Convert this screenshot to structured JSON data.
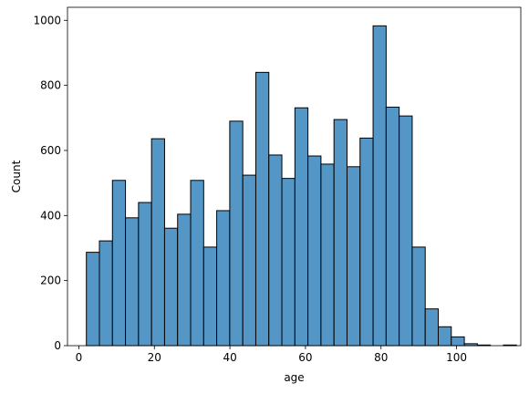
{
  "chart_data": {
    "type": "bar",
    "subtype": "histogram",
    "title": "",
    "xlabel": "age",
    "ylabel": "Count",
    "xlim": [
      -3,
      117
    ],
    "ylim": [
      0,
      1040
    ],
    "xticks": [
      0,
      20,
      40,
      60,
      80,
      100
    ],
    "yticks": [
      0,
      200,
      400,
      600,
      800,
      1000
    ],
    "grid": false,
    "legend": "none",
    "bar_color": "#5497c7",
    "edge_color": "#000000",
    "bins": [
      {
        "x0": 2,
        "x1": 5.45,
        "value": 287
      },
      {
        "x0": 5.45,
        "x1": 8.9,
        "value": 322
      },
      {
        "x0": 8.9,
        "x1": 12.35,
        "value": 508
      },
      {
        "x0": 12.35,
        "x1": 15.8,
        "value": 393
      },
      {
        "x0": 15.8,
        "x1": 19.25,
        "value": 440
      },
      {
        "x0": 19.25,
        "x1": 22.7,
        "value": 636
      },
      {
        "x0": 22.7,
        "x1": 26.15,
        "value": 361
      },
      {
        "x0": 26.15,
        "x1": 29.6,
        "value": 404
      },
      {
        "x0": 29.6,
        "x1": 33.05,
        "value": 508
      },
      {
        "x0": 33.05,
        "x1": 36.5,
        "value": 303
      },
      {
        "x0": 36.5,
        "x1": 39.95,
        "value": 415
      },
      {
        "x0": 39.95,
        "x1": 43.4,
        "value": 690
      },
      {
        "x0": 43.4,
        "x1": 46.85,
        "value": 524
      },
      {
        "x0": 46.85,
        "x1": 50.3,
        "value": 840
      },
      {
        "x0": 50.3,
        "x1": 53.75,
        "value": 586
      },
      {
        "x0": 53.75,
        "x1": 57.2,
        "value": 514
      },
      {
        "x0": 57.2,
        "x1": 60.65,
        "value": 731
      },
      {
        "x0": 60.65,
        "x1": 64.1,
        "value": 583
      },
      {
        "x0": 64.1,
        "x1": 67.55,
        "value": 558
      },
      {
        "x0": 67.55,
        "x1": 71.0,
        "value": 695
      },
      {
        "x0": 71.0,
        "x1": 74.45,
        "value": 550
      },
      {
        "x0": 74.45,
        "x1": 77.9,
        "value": 638
      },
      {
        "x0": 77.9,
        "x1": 81.35,
        "value": 983
      },
      {
        "x0": 81.35,
        "x1": 84.8,
        "value": 733
      },
      {
        "x0": 84.8,
        "x1": 88.25,
        "value": 706
      },
      {
        "x0": 88.25,
        "x1": 91.7,
        "value": 303
      },
      {
        "x0": 91.7,
        "x1": 95.15,
        "value": 113
      },
      {
        "x0": 95.15,
        "x1": 98.6,
        "value": 58
      },
      {
        "x0": 98.6,
        "x1": 102.05,
        "value": 27
      },
      {
        "x0": 102.05,
        "x1": 105.5,
        "value": 6
      },
      {
        "x0": 105.5,
        "x1": 108.95,
        "value": 2
      },
      {
        "x0": 108.95,
        "x1": 112.4,
        "value": 0
      },
      {
        "x0": 112.4,
        "x1": 115.85,
        "value": 2
      }
    ]
  }
}
